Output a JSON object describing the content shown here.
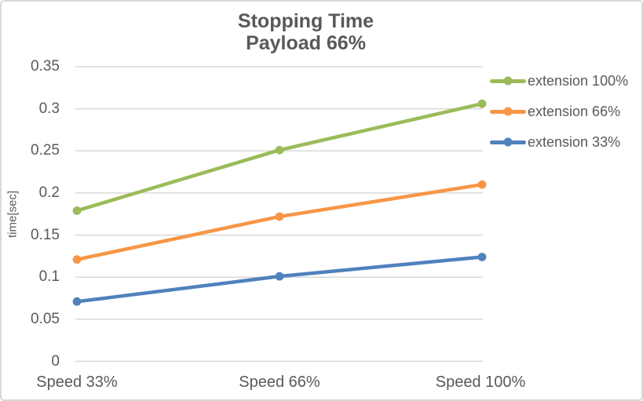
{
  "colors": {
    "background": "#FFFFFF",
    "border": "#D9D9D9",
    "grid": "#D9D9D9",
    "text": "#595959"
  },
  "chart_data": {
    "type": "line",
    "title": "Stopping Time",
    "subtitle": "Payload 66%",
    "xlabel": "",
    "ylabel": "time[sec]",
    "categories": [
      "Speed 33%",
      "Speed 66%",
      "Speed 100%"
    ],
    "series": [
      {
        "name": "extension 100%",
        "color": "#9BBB59",
        "values": [
          0.179,
          0.251,
          0.306
        ]
      },
      {
        "name": "extension 66%",
        "color": "#F79646",
        "values": [
          0.121,
          0.172,
          0.21
        ]
      },
      {
        "name": "extension 33%",
        "color": "#4F81BD",
        "values": [
          0.071,
          0.101,
          0.124
        ]
      }
    ],
    "ylim": [
      0,
      0.35
    ],
    "y_tick_step": 0.05,
    "y_tick_labels": [
      "0",
      "0.05",
      "0.1",
      "0.15",
      "0.2",
      "0.25",
      "0.3",
      "0.35"
    ],
    "grid": true,
    "legend_position": "right",
    "marker": "circle"
  }
}
